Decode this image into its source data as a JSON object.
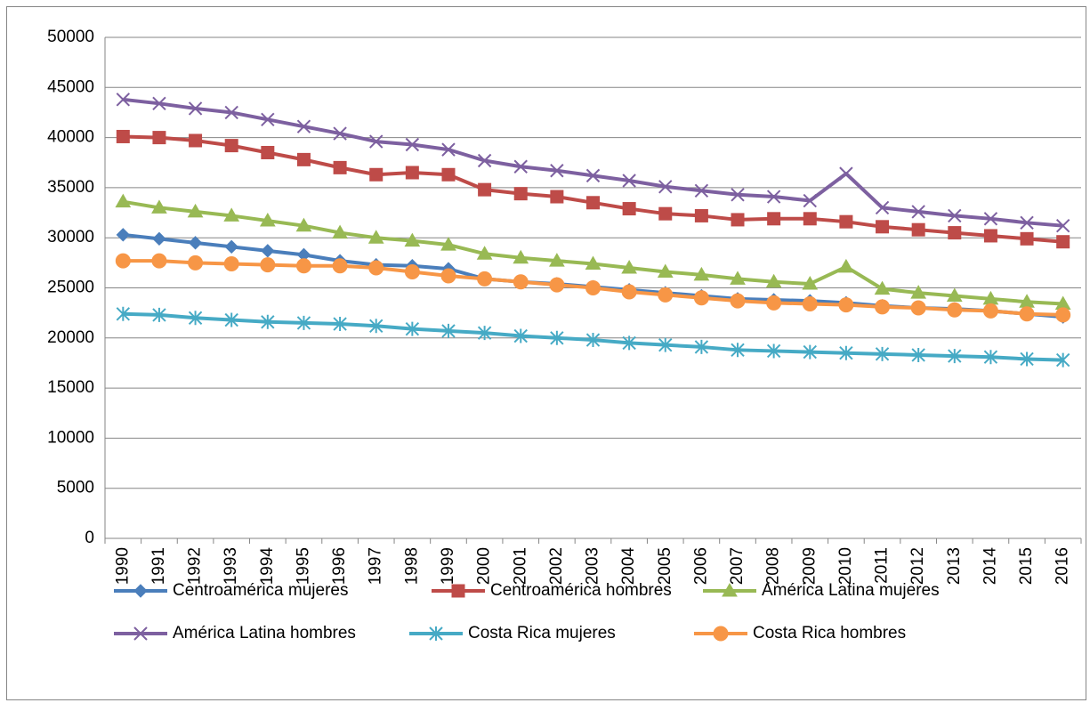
{
  "chart_data": {
    "type": "line",
    "categories": [
      "1990",
      "1991",
      "1992",
      "1993",
      "1994",
      "1995",
      "1996",
      "1997",
      "1998",
      "1999",
      "2000",
      "2001",
      "2002",
      "2003",
      "2004",
      "2005",
      "2006",
      "2007",
      "2008",
      "2009",
      "2010",
      "2011",
      "2012",
      "2013",
      "2014",
      "2015",
      "2016"
    ],
    "series": [
      {
        "name": "Centroamérica mujeres",
        "color": "#4a7ebb",
        "marker": "diamond",
        "values": [
          30300,
          29900,
          29500,
          29100,
          28700,
          28300,
          27700,
          27300,
          27200,
          26900,
          25900,
          25600,
          25400,
          25100,
          24800,
          24500,
          24200,
          23900,
          23800,
          23700,
          23500,
          23200,
          23000,
          22900,
          22700,
          22400,
          22100
        ]
      },
      {
        "name": "Centroamérica hombres",
        "color": "#be4b48",
        "marker": "square",
        "values": [
          40100,
          40000,
          39700,
          39200,
          38500,
          37800,
          37000,
          36300,
          36500,
          36300,
          34800,
          34400,
          34100,
          33500,
          32900,
          32400,
          32200,
          31800,
          31900,
          31900,
          31600,
          31100,
          30800,
          30500,
          30200,
          29900,
          29600
        ]
      },
      {
        "name": "América Latina mujeres",
        "color": "#98b954",
        "marker": "triangle",
        "values": [
          33600,
          33000,
          32600,
          32200,
          31700,
          31200,
          30500,
          30000,
          29700,
          29300,
          28400,
          28000,
          27700,
          27400,
          27000,
          26600,
          26300,
          25900,
          25600,
          25400,
          27100,
          24900,
          24500,
          24200,
          23900,
          23600,
          23400
        ]
      },
      {
        "name": "América Latina hombres",
        "color": "#7d60a0",
        "marker": "x",
        "values": [
          43800,
          43400,
          42900,
          42500,
          41800,
          41100,
          40400,
          39600,
          39300,
          38800,
          37700,
          37100,
          36700,
          36200,
          35700,
          35100,
          34700,
          34300,
          34100,
          33700,
          36400,
          33000,
          32600,
          32200,
          31900,
          31500,
          31200
        ]
      },
      {
        "name": "Costa Rica mujeres",
        "color": "#46aac5",
        "marker": "star",
        "values": [
          22400,
          22300,
          22000,
          21800,
          21600,
          21500,
          21400,
          21200,
          20900,
          20700,
          20500,
          20200,
          20000,
          19800,
          19500,
          19300,
          19100,
          18800,
          18700,
          18600,
          18500,
          18400,
          18300,
          18200,
          18100,
          17900,
          17800
        ]
      },
      {
        "name": "Costa Rica hombres",
        "color": "#f79646",
        "marker": "circle",
        "values": [
          27700,
          27700,
          27500,
          27400,
          27300,
          27200,
          27200,
          27000,
          26600,
          26200,
          25900,
          25600,
          25300,
          25000,
          24600,
          24300,
          24000,
          23700,
          23500,
          23400,
          23300,
          23100,
          23000,
          22800,
          22700,
          22400,
          22300
        ]
      }
    ],
    "ylim": [
      0,
      50000
    ],
    "yticks": [
      0,
      5000,
      10000,
      15000,
      20000,
      25000,
      30000,
      35000,
      40000,
      45000,
      50000
    ],
    "grid": true,
    "legend": "bottom"
  }
}
